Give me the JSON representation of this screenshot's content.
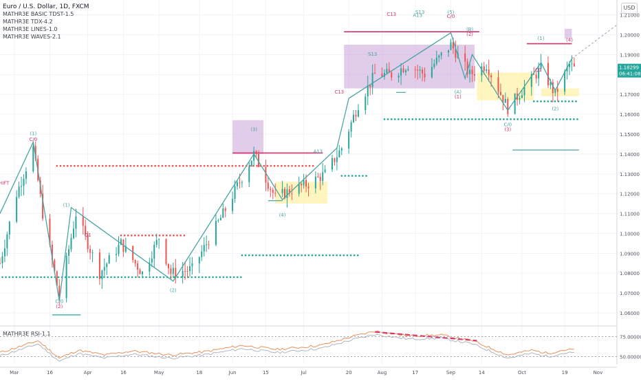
{
  "header": {
    "symbol_title": "Euro / U.S. Dollar, 1D, FXCM",
    "indicators": [
      "MATHR3E BASIC TDST-1.5",
      "MATHR3E TDX-4.2",
      "MATHR3E LINES-1.0",
      "MATHR3E WAVES-2.1"
    ],
    "currency_button": "USD"
  },
  "price_tags": {
    "last_price": "1.18299",
    "countdown": "06:41:08"
  },
  "rsi_panel": {
    "title": "MATHR3E RSI-1.1",
    "tick_labels": [
      "75.00000",
      "50.00000"
    ]
  },
  "colors": {
    "bull": "#26a69a",
    "bear": "#ef5350",
    "wave": "#4ba3a3",
    "accent": "#d6336c",
    "violet": "#c8a2d8",
    "yellow": "#fff2a8"
  },
  "wave_labels": [
    {
      "text": "(1)",
      "d": "2020-03-09",
      "p": 1.1495,
      "c": "wave"
    },
    {
      "text": "C/0",
      "d": "2020-03-09",
      "p": 1.1465,
      "c": "accent"
    },
    {
      "text": "(1)",
      "d": "2020-03-23",
      "p": 1.1135,
      "c": "wave"
    },
    {
      "text": "(2)",
      "d": "2020-03-20",
      "p": 1.0625,
      "c": "accent"
    },
    {
      "text": "C/0",
      "d": "2020-03-20",
      "p": 1.065,
      "c": "wave"
    },
    {
      "text": "(2)",
      "d": "2020-05-07",
      "p": 1.0705,
      "c": "wave"
    },
    {
      "text": "(3)",
      "d": "2020-06-10",
      "p": 1.1515,
      "c": "wave"
    },
    {
      "text": "(4)",
      "d": "2020-06-22",
      "p": 1.1085,
      "c": "wave"
    },
    {
      "text": "A13",
      "d": "2020-07-07",
      "p": 1.1405,
      "c": "wave"
    },
    {
      "text": "C13",
      "d": "2020-07-16",
      "p": 1.1705,
      "c": "accent"
    },
    {
      "text": "S13",
      "d": "2020-07-30",
      "p": 1.1895,
      "c": "wave"
    },
    {
      "text": "C13",
      "d": "2020-08-07",
      "p": 1.2095,
      "c": "accent"
    },
    {
      "text": "S13",
      "d": "2020-08-19",
      "p": 1.2105,
      "c": "wave"
    },
    {
      "text": "A13",
      "d": "2020-08-18",
      "p": 1.209,
      "c": "wave"
    },
    {
      "text": "(5)",
      "d": "2020-09-01",
      "p": 1.2105,
      "c": "wave"
    },
    {
      "text": "C/0",
      "d": "2020-09-01",
      "p": 1.2085,
      "c": "accent"
    },
    {
      "text": "(B)",
      "d": "2020-09-09",
      "p": 1.202,
      "c": "wave"
    },
    {
      "text": "(2)",
      "d": "2020-09-09",
      "p": 1.1995,
      "c": "accent"
    },
    {
      "text": "(A)",
      "d": "2020-09-04",
      "p": 1.1705,
      "c": "wave"
    },
    {
      "text": "(1)",
      "d": "2020-09-04",
      "p": 1.168,
      "c": "accent"
    },
    {
      "text": "C/0",
      "d": "2020-09-25",
      "p": 1.154,
      "c": "wave"
    },
    {
      "text": "(3)",
      "d": "2020-09-25",
      "p": 1.1515,
      "c": "accent"
    },
    {
      "text": "(1)",
      "d": "2020-10-09",
      "p": 1.1975,
      "c": "wave"
    },
    {
      "text": "(2)",
      "d": "2020-10-15",
      "p": 1.162,
      "c": "wave"
    },
    {
      "text": "(4)",
      "d": "2020-10-21",
      "p": 1.1965,
      "c": "accent"
    },
    {
      "text": "SHIFT",
      "d": "2020-02-25",
      "p": 1.1245,
      "c": "accent"
    },
    {
      "text": "Q1",
      "d": "2020-04-01",
      "p": 1.0985,
      "c": "accent"
    },
    {
      "text": "Q1",
      "d": "2020-10-08",
      "p": 1.1815,
      "c": "accent"
    }
  ],
  "chart_data": {
    "type": "candlestick",
    "title": "Euro / U.S. Dollar, 1D, FXCM",
    "xlabel": "",
    "ylabel": "",
    "x_range": [
      "2020-02-24",
      "2020-11-10"
    ],
    "ylim": [
      1.0555,
      1.2175
    ],
    "y_ticks": [
      1.06,
      1.07,
      1.08,
      1.09,
      1.1,
      1.11,
      1.12,
      1.13,
      1.14,
      1.15,
      1.16,
      1.17,
      1.18,
      1.19,
      1.2,
      1.21
    ],
    "x_ticks": [
      {
        "label": "Mar",
        "date": "2020-03-01"
      },
      {
        "label": "16",
        "date": "2020-03-16"
      },
      {
        "label": "Apr",
        "date": "2020-04-01"
      },
      {
        "label": "16",
        "date": "2020-04-16"
      },
      {
        "label": "May",
        "date": "2020-05-01"
      },
      {
        "label": "18",
        "date": "2020-05-18"
      },
      {
        "label": "Jun",
        "date": "2020-06-01"
      },
      {
        "label": "15",
        "date": "2020-06-15"
      },
      {
        "label": "Jul",
        "date": "2020-07-01"
      },
      {
        "label": "20",
        "date": "2020-07-20"
      },
      {
        "label": "Aug",
        "date": "2020-08-03"
      },
      {
        "label": "17",
        "date": "2020-08-17"
      },
      {
        "label": "Sep",
        "date": "2020-09-01"
      },
      {
        "label": "14",
        "date": "2020-09-14"
      },
      {
        "label": "Oct",
        "date": "2020-10-01"
      },
      {
        "label": "19",
        "date": "2020-10-19"
      },
      {
        "label": "Nov",
        "date": "2020-11-02"
      }
    ],
    "last_price": 1.18299,
    "price_anchors": [
      [
        "2020-02-24",
        1.085
      ],
      [
        "2020-03-02",
        1.12
      ],
      [
        "2020-03-09",
        1.143
      ],
      [
        "2020-03-13",
        1.11
      ],
      [
        "2020-03-20",
        1.068
      ],
      [
        "2020-03-27",
        1.11
      ],
      [
        "2020-04-06",
        1.08
      ],
      [
        "2020-04-15",
        1.095
      ],
      [
        "2020-04-24",
        1.08
      ],
      [
        "2020-05-01",
        1.098
      ],
      [
        "2020-05-06",
        1.08
      ],
      [
        "2020-05-15",
        1.082
      ],
      [
        "2020-05-29",
        1.112
      ],
      [
        "2020-06-10",
        1.14
      ],
      [
        "2020-06-19",
        1.118
      ],
      [
        "2020-06-26",
        1.122
      ],
      [
        "2020-07-03",
        1.125
      ],
      [
        "2020-07-10",
        1.13
      ],
      [
        "2020-07-17",
        1.143
      ],
      [
        "2020-07-24",
        1.165
      ],
      [
        "2020-07-31",
        1.18
      ],
      [
        "2020-08-07",
        1.18
      ],
      [
        "2020-08-14",
        1.185
      ],
      [
        "2020-08-21",
        1.18
      ],
      [
        "2020-09-01",
        1.195
      ],
      [
        "2020-09-09",
        1.18
      ],
      [
        "2020-09-16",
        1.185
      ],
      [
        "2020-09-25",
        1.163
      ],
      [
        "2020-10-01",
        1.172
      ],
      [
        "2020-10-09",
        1.183
      ],
      [
        "2020-10-15",
        1.17
      ],
      [
        "2020-10-21",
        1.185
      ],
      [
        "2020-10-23",
        1.183
      ]
    ],
    "wave_path": [
      [
        "2020-02-24",
        1.11
      ],
      [
        "2020-03-09",
        1.146
      ],
      [
        "2020-03-20",
        1.066
      ],
      [
        "2020-03-25",
        1.113
      ],
      [
        "2020-05-07",
        1.076
      ],
      [
        "2020-06-10",
        1.14
      ],
      [
        "2020-06-22",
        1.117
      ],
      [
        "2020-07-15",
        1.143
      ],
      [
        "2020-07-20",
        1.168
      ],
      [
        "2020-09-01",
        1.201
      ],
      [
        "2020-09-07",
        1.178
      ],
      [
        "2020-09-10",
        1.19
      ],
      [
        "2020-09-25",
        1.162
      ],
      [
        "2020-10-09",
        1.186
      ],
      [
        "2020-10-15",
        1.172
      ],
      [
        "2020-10-22",
        1.188
      ]
    ],
    "projection_path": [
      [
        "2020-10-22",
        1.188
      ],
      [
        "2020-11-10",
        1.205
      ]
    ],
    "dotted_levels": [
      {
        "from": "2020-02-25",
        "to": "2020-06-05",
        "price": 1.078,
        "color": "bull"
      },
      {
        "from": "2020-03-19",
        "to": "2020-07-05",
        "price": 1.134,
        "color": "bear"
      },
      {
        "from": "2020-04-15",
        "to": "2020-05-12",
        "price": 1.099,
        "color": "bear"
      },
      {
        "from": "2020-06-05",
        "to": "2020-07-24",
        "price": 1.089,
        "color": "bull"
      },
      {
        "from": "2020-07-17",
        "to": "2020-07-28",
        "price": 1.129,
        "color": "bull"
      },
      {
        "from": "2020-08-04",
        "to": "2020-10-25",
        "price": 1.1575,
        "color": "bull"
      },
      {
        "from": "2020-10-06",
        "to": "2020-10-24",
        "price": 1.1665,
        "color": "bull"
      }
    ],
    "solid_levels": [
      {
        "from": "2020-06-01",
        "to": "2020-07-09",
        "price": 1.1405,
        "color": "accent"
      },
      {
        "from": "2020-07-18",
        "to": "2020-09-13",
        "price": 1.2015,
        "color": "accent"
      },
      {
        "from": "2020-10-03",
        "to": "2020-10-22",
        "price": 1.1955,
        "color": "accent"
      },
      {
        "from": "2020-03-17",
        "to": "2020-03-29",
        "price": 1.059,
        "color": "bull"
      },
      {
        "from": "2020-06-16",
        "to": "2020-06-22",
        "price": 1.1165,
        "color": "wave"
      },
      {
        "from": "2020-08-09",
        "to": "2020-08-13",
        "price": 1.171,
        "color": "wave"
      },
      {
        "from": "2020-09-27",
        "to": "2020-10-25",
        "price": 1.142,
        "color": "wave"
      }
    ],
    "zones": [
      {
        "from": "2020-06-01",
        "to": "2020-06-14",
        "top": 1.157,
        "bottom": 1.14,
        "color": "violet"
      },
      {
        "from": "2020-07-18",
        "to": "2020-09-11",
        "top": 1.195,
        "bottom": 1.173,
        "color": "violet"
      },
      {
        "from": "2020-10-19",
        "to": "2020-10-22",
        "top": 1.203,
        "bottom": 1.198,
        "color": "violet"
      },
      {
        "from": "2020-06-19",
        "to": "2020-07-11",
        "top": 1.126,
        "bottom": 1.115,
        "color": "yellow"
      },
      {
        "from": "2020-09-12",
        "to": "2020-10-06",
        "top": 1.181,
        "bottom": 1.167,
        "color": "yellow"
      },
      {
        "from": "2020-10-09",
        "to": "2020-10-25",
        "top": 1.173,
        "bottom": 1.169,
        "color": "yellow"
      }
    ],
    "rsi": {
      "ylim": [
        40,
        85
      ],
      "levels": [
        75,
        50
      ],
      "anchors": [
        [
          "2020-02-24",
          55
        ],
        [
          "2020-03-05",
          64
        ],
        [
          "2020-03-11",
          70
        ],
        [
          "2020-03-20",
          48
        ],
        [
          "2020-03-28",
          58
        ],
        [
          "2020-04-08",
          52
        ],
        [
          "2020-04-20",
          57
        ],
        [
          "2020-05-06",
          52
        ],
        [
          "2020-05-20",
          56
        ],
        [
          "2020-06-05",
          64
        ],
        [
          "2020-06-20",
          59
        ],
        [
          "2020-07-08",
          64
        ],
        [
          "2020-07-20",
          74
        ],
        [
          "2020-07-31",
          82
        ],
        [
          "2020-08-14",
          76
        ],
        [
          "2020-08-28",
          77
        ],
        [
          "2020-09-10",
          70
        ],
        [
          "2020-09-25",
          52
        ],
        [
          "2020-10-05",
          58
        ],
        [
          "2020-10-12",
          54
        ],
        [
          "2020-10-18",
          58
        ],
        [
          "2020-10-23",
          59
        ]
      ],
      "divergence": [
        [
          "2020-07-31",
          81
        ],
        [
          "2020-09-12",
          70
        ]
      ]
    }
  }
}
